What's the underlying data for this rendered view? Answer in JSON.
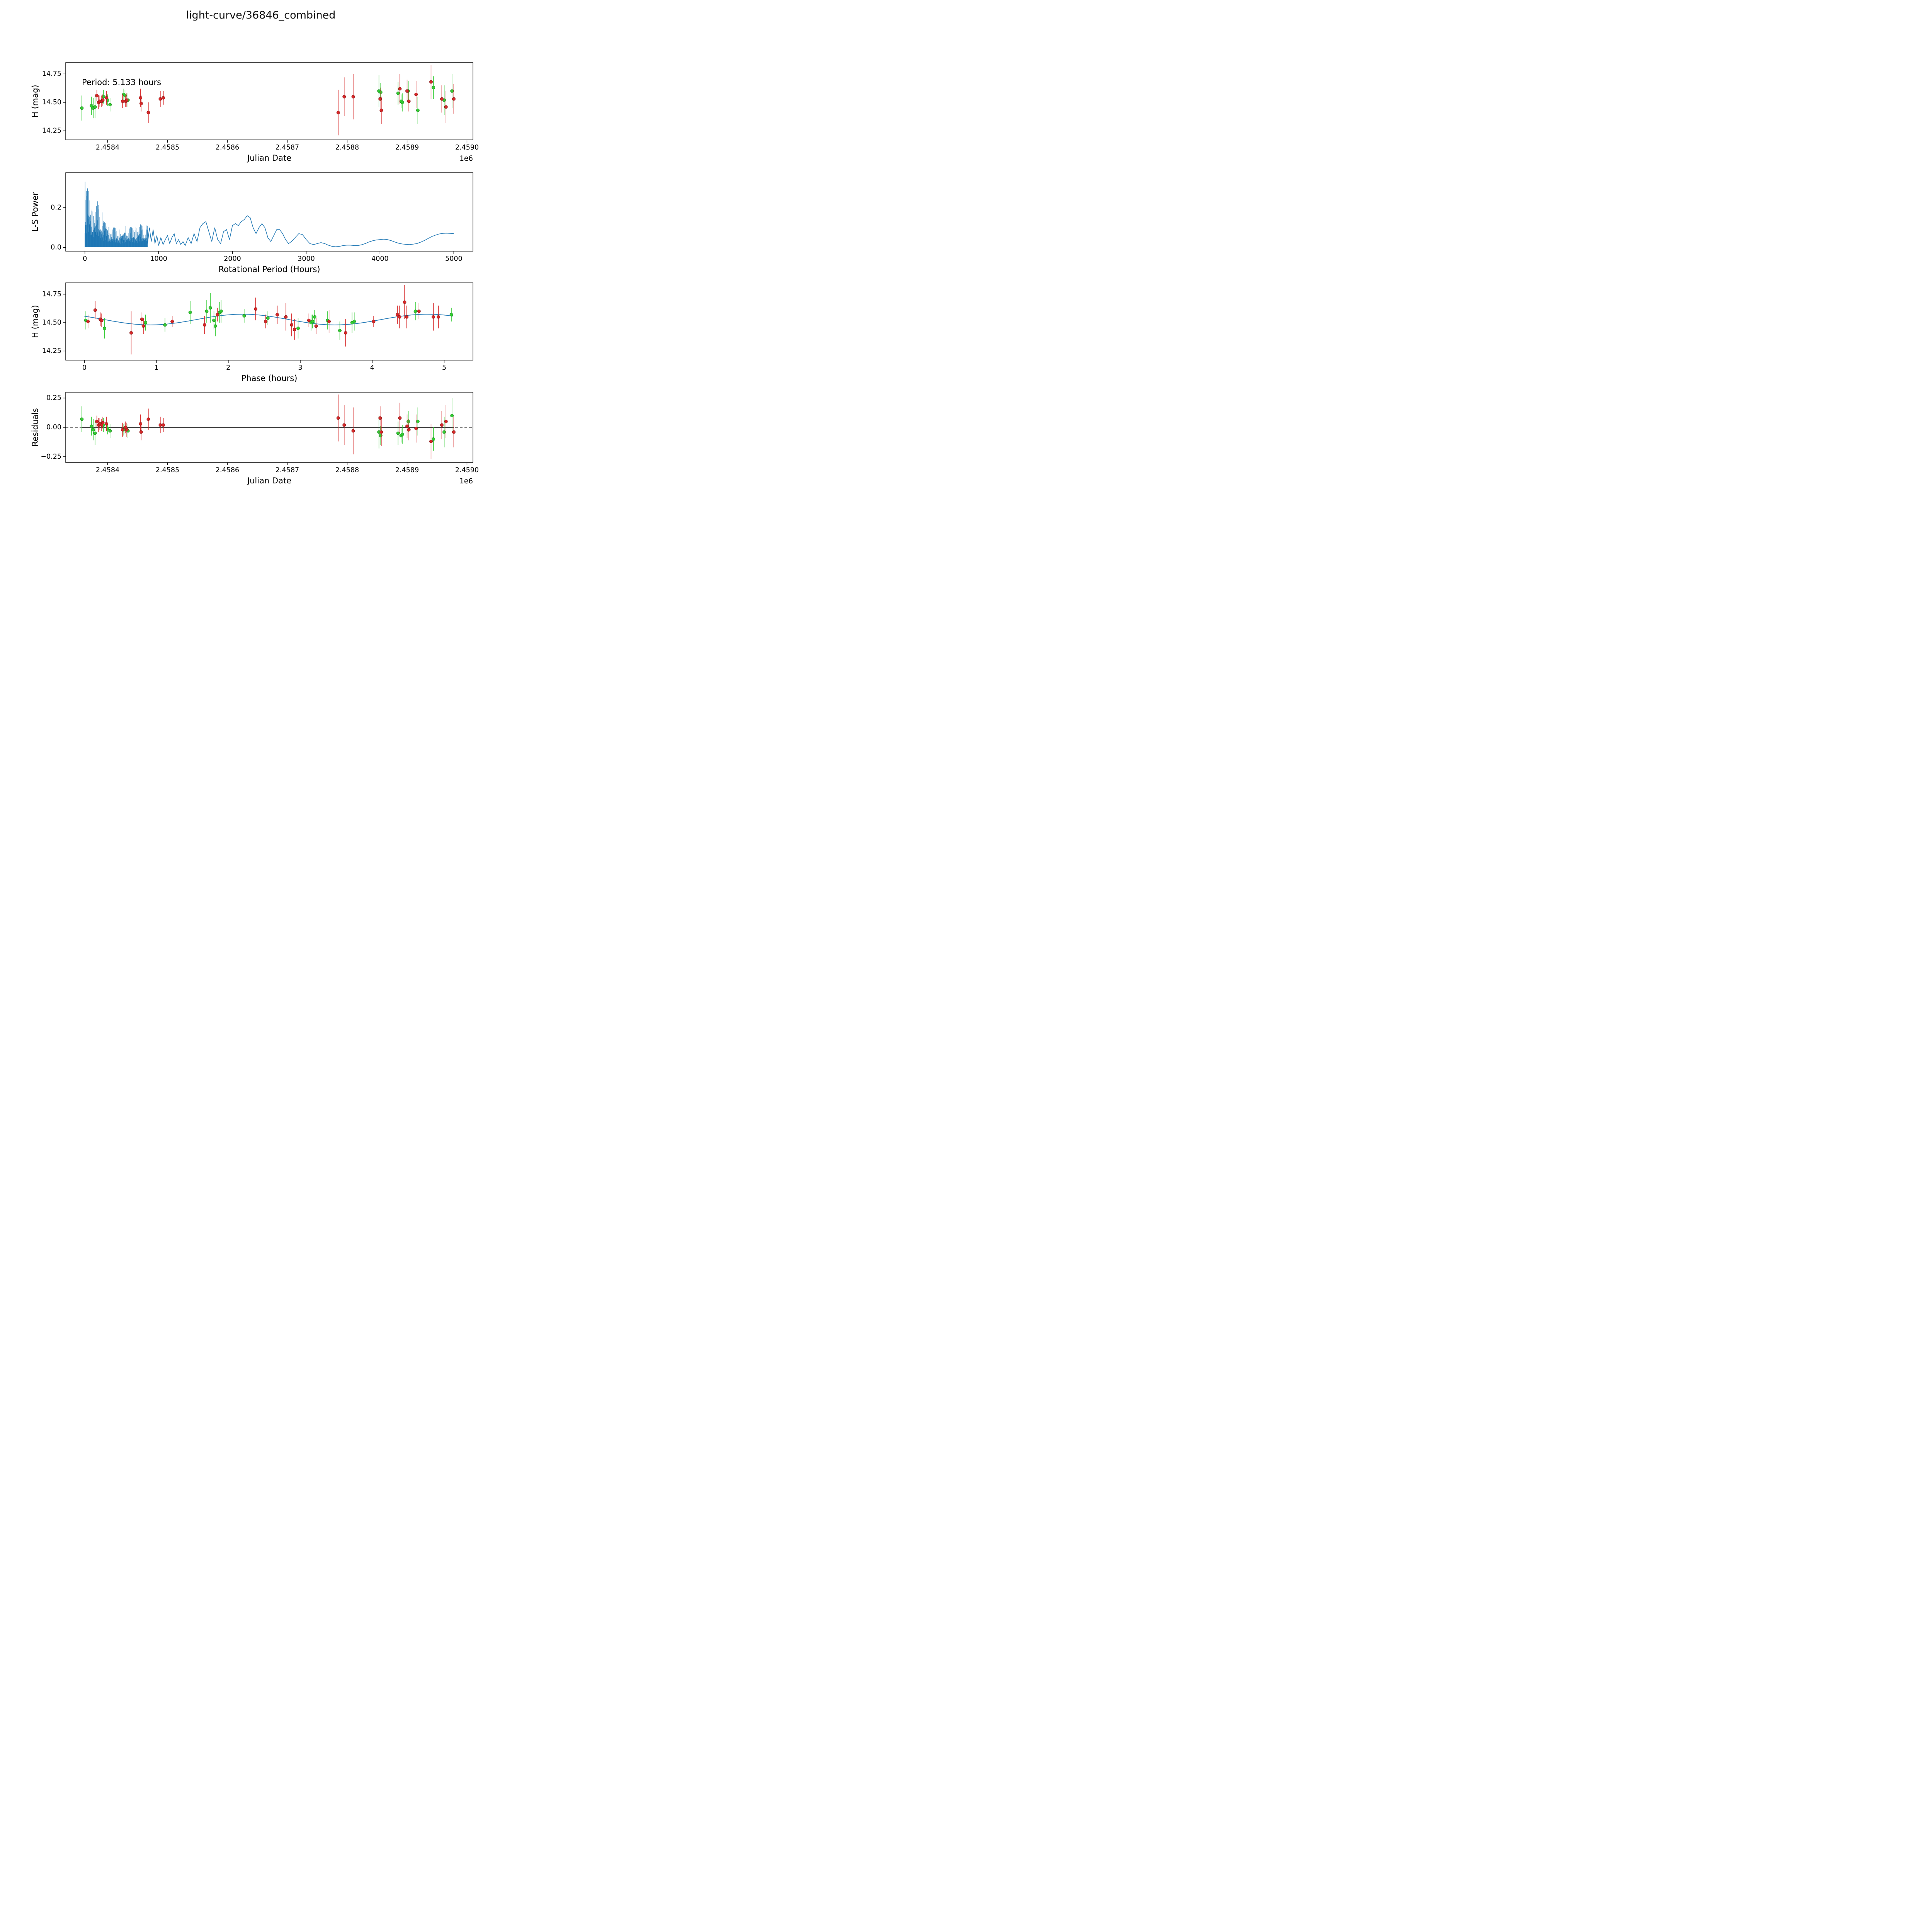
{
  "title": "light-curve/36846_combined",
  "colors": {
    "green": "#33cc33",
    "green_edge": "#1f8a1f",
    "red": "#d62728",
    "red_edge": "#8c1414",
    "line": "#1f77b4",
    "axis": "#000000"
  },
  "chart_data": [
    {
      "id": "lightcurve",
      "type": "scatter",
      "xlabel": "Julian Date",
      "ylabel": "H (mag)",
      "x_offset_text": "1e6",
      "annotation": "Period: 5.133 hours",
      "xlim": [
        2.45833,
        2.45901
      ],
      "ylim": [
        14.17,
        14.85
      ],
      "xticks": [
        2.4584,
        2.4585,
        2.4586,
        2.4587,
        2.4588,
        2.4589,
        2.459
      ],
      "xtick_labels": [
        "2.4584",
        "2.4585",
        "2.4586",
        "2.4587",
        "2.4588",
        "2.4589",
        "2.4590"
      ],
      "yticks": [
        14.25,
        14.5,
        14.75
      ],
      "ytick_labels": [
        "14.25",
        "14.50",
        "14.75"
      ],
      "series": [
        {
          "name": "green",
          "color_key": "green",
          "x": [
            2.458357,
            2.458373,
            2.458376,
            2.458379,
            2.458393,
            2.4584,
            2.458404,
            2.458427,
            2.458429,
            2.458434,
            2.458853,
            2.458856,
            2.458885,
            2.45889,
            2.458892,
            2.458902,
            2.458918,
            2.458944,
            2.458962,
            2.458975
          ],
          "y": [
            14.45,
            14.47,
            14.45,
            14.46,
            14.55,
            14.52,
            14.48,
            14.57,
            14.56,
            14.52,
            14.6,
            14.59,
            14.58,
            14.51,
            14.5,
            14.6,
            14.43,
            14.63,
            14.52,
            14.6
          ],
          "yerr": [
            0.11,
            0.08,
            0.09,
            0.1,
            0.06,
            0.05,
            0.06,
            0.05,
            0.05,
            0.06,
            0.14,
            0.08,
            0.1,
            0.06,
            0.08,
            0.09,
            0.12,
            0.1,
            0.13,
            0.15
          ]
        },
        {
          "name": "red",
          "color_key": "red",
          "x": [
            2.458382,
            2.458385,
            2.458387,
            2.45839,
            2.458392,
            2.458398,
            2.458425,
            2.45843,
            2.458432,
            2.458455,
            2.458456,
            2.458468,
            2.458488,
            2.458493,
            2.458785,
            2.458795,
            2.45881,
            2.458855,
            2.458857,
            2.458888,
            2.4589,
            2.458903,
            2.458915,
            2.45894,
            2.458958,
            2.458965,
            2.458978
          ],
          "y": [
            14.56,
            14.5,
            14.51,
            14.51,
            14.52,
            14.54,
            14.51,
            14.51,
            14.52,
            14.54,
            14.49,
            14.41,
            14.53,
            14.54,
            14.41,
            14.55,
            14.55,
            14.53,
            14.43,
            14.62,
            14.6,
            14.51,
            14.57,
            14.68,
            14.53,
            14.46,
            14.53
          ],
          "yerr": [
            0.05,
            0.06,
            0.05,
            0.05,
            0.05,
            0.06,
            0.06,
            0.05,
            0.06,
            0.08,
            0.07,
            0.09,
            0.07,
            0.06,
            0.2,
            0.17,
            0.2,
            0.1,
            0.12,
            0.13,
            0.1,
            0.09,
            0.12,
            0.15,
            0.12,
            0.14,
            0.13
          ]
        }
      ]
    },
    {
      "id": "periodogram",
      "type": "line",
      "xlabel": "Rotational Period (Hours)",
      "ylabel": "L-S Power",
      "xlim": [
        -260,
        5260
      ],
      "ylim": [
        -0.018,
        0.375
      ],
      "xticks": [
        0,
        1000,
        2000,
        3000,
        4000,
        5000
      ],
      "xtick_labels": [
        "0",
        "1000",
        "2000",
        "3000",
        "4000",
        "5000"
      ],
      "yticks": [
        0.0,
        0.2
      ],
      "ytick_labels": [
        "0.0",
        "0.2"
      ],
      "dense_region": {
        "x_end": 850,
        "step": 3,
        "envelope": [
          [
            0,
            0.36
          ],
          [
            15,
            0.345
          ],
          [
            30,
            0.32
          ],
          [
            60,
            0.3
          ],
          [
            90,
            0.26
          ],
          [
            120,
            0.22
          ],
          [
            150,
            0.21
          ],
          [
            180,
            0.26
          ],
          [
            210,
            0.22
          ],
          [
            240,
            0.18
          ],
          [
            270,
            0.15
          ],
          [
            300,
            0.14
          ],
          [
            330,
            0.12
          ],
          [
            360,
            0.11
          ],
          [
            400,
            0.1
          ],
          [
            440,
            0.12
          ],
          [
            480,
            0.09
          ],
          [
            520,
            0.08
          ],
          [
            560,
            0.13
          ],
          [
            600,
            0.12
          ],
          [
            640,
            0.1
          ],
          [
            680,
            0.13
          ],
          [
            720,
            0.11
          ],
          [
            760,
            0.13
          ],
          [
            800,
            0.12
          ],
          [
            850,
            0.13
          ]
        ]
      },
      "line": [
        [
          850,
          0.02
        ],
        [
          875,
          0.1
        ],
        [
          900,
          0.03
        ],
        [
          925,
          0.09
        ],
        [
          950,
          0.02
        ],
        [
          975,
          0.06
        ],
        [
          1000,
          0.01
        ],
        [
          1030,
          0.05
        ],
        [
          1060,
          0.015
        ],
        [
          1090,
          0.04
        ],
        [
          1120,
          0.06
        ],
        [
          1150,
          0.02
        ],
        [
          1180,
          0.05
        ],
        [
          1210,
          0.07
        ],
        [
          1240,
          0.02
        ],
        [
          1270,
          0.04
        ],
        [
          1300,
          0.015
        ],
        [
          1330,
          0.03
        ],
        [
          1360,
          0.01
        ],
        [
          1400,
          0.05
        ],
        [
          1440,
          0.02
        ],
        [
          1480,
          0.07
        ],
        [
          1520,
          0.03
        ],
        [
          1560,
          0.1
        ],
        [
          1600,
          0.12
        ],
        [
          1640,
          0.13
        ],
        [
          1680,
          0.08
        ],
        [
          1720,
          0.03
        ],
        [
          1760,
          0.1
        ],
        [
          1800,
          0.04
        ],
        [
          1840,
          0.02
        ],
        [
          1880,
          0.08
        ],
        [
          1920,
          0.09
        ],
        [
          1960,
          0.04
        ],
        [
          2000,
          0.11
        ],
        [
          2040,
          0.12
        ],
        [
          2080,
          0.11
        ],
        [
          2120,
          0.13
        ],
        [
          2160,
          0.14
        ],
        [
          2200,
          0.16
        ],
        [
          2240,
          0.15
        ],
        [
          2280,
          0.1
        ],
        [
          2320,
          0.07
        ],
        [
          2360,
          0.1
        ],
        [
          2400,
          0.12
        ],
        [
          2440,
          0.1
        ],
        [
          2480,
          0.05
        ],
        [
          2520,
          0.03
        ],
        [
          2560,
          0.06
        ],
        [
          2600,
          0.09
        ],
        [
          2640,
          0.09
        ],
        [
          2680,
          0.07
        ],
        [
          2720,
          0.04
        ],
        [
          2760,
          0.02
        ],
        [
          2800,
          0.03
        ],
        [
          2850,
          0.05
        ],
        [
          2900,
          0.07
        ],
        [
          2950,
          0.065
        ],
        [
          3000,
          0.04
        ],
        [
          3050,
          0.02
        ],
        [
          3100,
          0.015
        ],
        [
          3150,
          0.02
        ],
        [
          3200,
          0.025
        ],
        [
          3250,
          0.02
        ],
        [
          3300,
          0.012
        ],
        [
          3350,
          0.006
        ],
        [
          3400,
          0.004
        ],
        [
          3450,
          0.006
        ],
        [
          3500,
          0.01
        ],
        [
          3550,
          0.012
        ],
        [
          3600,
          0.012
        ],
        [
          3650,
          0.01
        ],
        [
          3700,
          0.01
        ],
        [
          3750,
          0.014
        ],
        [
          3800,
          0.02
        ],
        [
          3850,
          0.028
        ],
        [
          3900,
          0.034
        ],
        [
          3950,
          0.038
        ],
        [
          4000,
          0.04
        ],
        [
          4050,
          0.042
        ],
        [
          4100,
          0.04
        ],
        [
          4150,
          0.035
        ],
        [
          4200,
          0.028
        ],
        [
          4250,
          0.022
        ],
        [
          4300,
          0.018
        ],
        [
          4350,
          0.016
        ],
        [
          4400,
          0.015
        ],
        [
          4450,
          0.017
        ],
        [
          4500,
          0.02
        ],
        [
          4550,
          0.027
        ],
        [
          4600,
          0.035
        ],
        [
          4650,
          0.045
        ],
        [
          4700,
          0.055
        ],
        [
          4750,
          0.062
        ],
        [
          4800,
          0.068
        ],
        [
          4850,
          0.071
        ],
        [
          4900,
          0.072
        ],
        [
          4950,
          0.071
        ],
        [
          5000,
          0.07
        ]
      ]
    },
    {
      "id": "phased",
      "type": "scatter",
      "xlabel": "Phase (hours)",
      "ylabel": "H (mag)",
      "xlim": [
        -0.26,
        5.4
      ],
      "ylim": [
        14.17,
        14.85
      ],
      "xticks": [
        0,
        1,
        2,
        3,
        4,
        5
      ],
      "xtick_labels": [
        "0",
        "1",
        "2",
        "3",
        "4",
        "5"
      ],
      "yticks": [
        14.25,
        14.5,
        14.75
      ],
      "ytick_labels": [
        "14.25",
        "14.50",
        "14.75"
      ],
      "fit": {
        "mean": 14.527,
        "amplitude": 0.047,
        "period_hours": 2.5665,
        "phase_of_max": 2.2,
        "x_start": 0,
        "x_end": 5.133
      },
      "series": [
        {
          "name": "green",
          "color_key": "green",
          "x": [
            0.02,
            0.28,
            0.85,
            1.12,
            1.47,
            1.7,
            1.75,
            1.8,
            1.82,
            1.88,
            1.9,
            2.22,
            2.55,
            2.97,
            3.15,
            3.17,
            3.2,
            3.38,
            3.55,
            3.72,
            3.75,
            4.6,
            5.1
          ],
          "y": [
            14.52,
            14.45,
            14.5,
            14.48,
            14.59,
            14.6,
            14.63,
            14.52,
            14.47,
            14.59,
            14.6,
            14.56,
            14.54,
            14.45,
            14.5,
            14.51,
            14.55,
            14.52,
            14.43,
            14.5,
            14.51,
            14.6,
            14.57
          ],
          "yerr": [
            0.08,
            0.09,
            0.07,
            0.06,
            0.1,
            0.1,
            0.13,
            0.08,
            0.09,
            0.09,
            0.1,
            0.06,
            0.06,
            0.09,
            0.07,
            0.06,
            0.06,
            0.08,
            0.08,
            0.09,
            0.08,
            0.08,
            0.06
          ]
        },
        {
          "name": "red",
          "color_key": "red",
          "x": [
            0.05,
            0.15,
            0.22,
            0.24,
            0.65,
            0.8,
            0.82,
            1.22,
            1.67,
            1.85,
            2.38,
            2.52,
            2.68,
            2.8,
            2.88,
            2.92,
            3.12,
            3.22,
            3.4,
            3.63,
            4.02,
            4.35,
            4.38,
            4.45,
            4.48,
            4.65,
            4.85,
            4.92
          ],
          "y": [
            14.51,
            14.61,
            14.53,
            14.52,
            14.41,
            14.53,
            14.47,
            14.51,
            14.48,
            14.57,
            14.62,
            14.51,
            14.57,
            14.55,
            14.48,
            14.44,
            14.52,
            14.47,
            14.51,
            14.41,
            14.51,
            14.57,
            14.55,
            14.68,
            14.55,
            14.6,
            14.55,
            14.55
          ],
          "yerr": [
            0.06,
            0.08,
            0.06,
            0.06,
            0.19,
            0.06,
            0.07,
            0.05,
            0.08,
            0.06,
            0.1,
            0.06,
            0.08,
            0.12,
            0.1,
            0.09,
            0.06,
            0.07,
            0.1,
            0.12,
            0.05,
            0.08,
            0.1,
            0.15,
            0.1,
            0.07,
            0.12,
            0.1
          ]
        }
      ]
    },
    {
      "id": "residuals",
      "type": "scatter",
      "xlabel": "Julian Date",
      "ylabel": "Residuals",
      "x_offset_text": "1e6",
      "xlim": [
        2.45833,
        2.45901
      ],
      "ylim": [
        -0.3,
        0.3
      ],
      "xticks": [
        2.4584,
        2.4585,
        2.4586,
        2.4587,
        2.4588,
        2.4589,
        2.459
      ],
      "xtick_labels": [
        "2.4584",
        "2.4585",
        "2.4586",
        "2.4587",
        "2.4588",
        "2.4589",
        "2.4590"
      ],
      "yticks": [
        -0.25,
        0.0,
        0.25
      ],
      "ytick_labels": [
        "−0.25",
        "0.00",
        "0.25"
      ],
      "zero_line": true,
      "zero_solid_span": [
        2.458357,
        2.458978
      ],
      "series": [
        {
          "name": "green",
          "color_key": "green",
          "x": [
            2.458357,
            2.458373,
            2.458376,
            2.458379,
            2.458393,
            2.4584,
            2.458404,
            2.458427,
            2.458429,
            2.458434,
            2.458853,
            2.458856,
            2.458885,
            2.45889,
            2.458892,
            2.458902,
            2.458918,
            2.458944,
            2.458962,
            2.458975
          ],
          "y": [
            0.07,
            0.01,
            -0.02,
            -0.05,
            0.02,
            -0.01,
            -0.03,
            -0.02,
            -0.01,
            -0.03,
            -0.04,
            -0.07,
            -0.05,
            -0.07,
            -0.06,
            0.05,
            0.05,
            -0.1,
            -0.04,
            0.1
          ],
          "yerr": [
            0.11,
            0.08,
            0.09,
            0.1,
            0.06,
            0.05,
            0.06,
            0.05,
            0.05,
            0.06,
            0.14,
            0.08,
            0.1,
            0.06,
            0.08,
            0.09,
            0.12,
            0.1,
            0.13,
            0.15
          ]
        },
        {
          "name": "red",
          "color_key": "red",
          "x": [
            2.458382,
            2.458385,
            2.458387,
            2.45839,
            2.458392,
            2.458398,
            2.458425,
            2.45843,
            2.458432,
            2.458455,
            2.458456,
            2.458468,
            2.458488,
            2.458493,
            2.458785,
            2.458795,
            2.45881,
            2.458855,
            2.458857,
            2.458888,
            2.4589,
            2.458903,
            2.458915,
            2.45894,
            2.458958,
            2.458965,
            2.458978
          ],
          "y": [
            0.05,
            0.02,
            0.03,
            0.02,
            0.04,
            0.03,
            -0.02,
            0.0,
            -0.02,
            0.03,
            -0.04,
            0.07,
            0.02,
            0.02,
            0.08,
            0.02,
            -0.03,
            0.08,
            -0.04,
            0.08,
            0.01,
            -0.02,
            -0.01,
            -0.12,
            0.02,
            0.05,
            -0.04
          ],
          "yerr": [
            0.05,
            0.06,
            0.05,
            0.05,
            0.05,
            0.06,
            0.06,
            0.05,
            0.06,
            0.08,
            0.07,
            0.09,
            0.07,
            0.06,
            0.2,
            0.17,
            0.2,
            0.1,
            0.12,
            0.13,
            0.1,
            0.09,
            0.12,
            0.15,
            0.12,
            0.14,
            0.13
          ]
        }
      ]
    }
  ]
}
